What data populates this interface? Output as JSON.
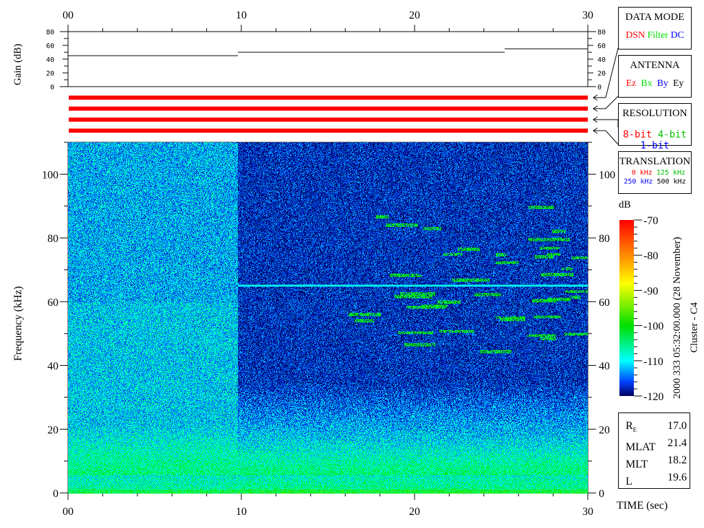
{
  "chart_data": {
    "type": "heatmap",
    "xlabel": "TIME (sec)",
    "ylabel": "Frequency (kHz)",
    "xlim": [
      0,
      30
    ],
    "ylim": [
      0,
      110
    ],
    "x_tick_labels": [
      "00",
      "10",
      "20",
      "30"
    ],
    "y_tick_labels": [
      "0",
      "20",
      "40",
      "60",
      "80",
      "100"
    ],
    "colorbar": {
      "label": "dB",
      "range": [
        -120,
        -70
      ],
      "tick_labels": [
        "-70",
        "-80",
        "-90",
        "-100",
        "-110",
        "-120"
      ],
      "colormap": "jet"
    },
    "gain": {
      "ylabel": "Gain (dB)",
      "ylim": [
        0,
        80
      ],
      "tick_labels": [
        "80",
        "60",
        "40",
        "20",
        "0"
      ],
      "segments": [
        {
          "t0": 0,
          "t1": 9.8,
          "value": 45
        },
        {
          "t0": 9.8,
          "t1": 25.2,
          "value": 50
        },
        {
          "t0": 25.2,
          "t1": 30,
          "value": 55
        }
      ]
    },
    "status_bars": {
      "data_mode": "DSN",
      "antenna": "Ez",
      "resolution": "8-bit",
      "translation": "0 kHz",
      "color": "#ff0000"
    }
  },
  "legend": {
    "data_mode": {
      "title": "DATA MODE",
      "items": [
        {
          "label": "DSN",
          "color": "#ff0000"
        },
        {
          "label": "Filter",
          "color": "#00e000"
        },
        {
          "label": "DC",
          "color": "#0000ff"
        }
      ]
    },
    "antenna": {
      "title": "ANTENNA",
      "items": [
        {
          "label": "Ez",
          "color": "#ff0000"
        },
        {
          "label": "Bx",
          "color": "#00e000"
        },
        {
          "label": "By",
          "color": "#0000ff"
        },
        {
          "label": "Ey",
          "color": "#000000"
        }
      ]
    },
    "resolution": {
      "title": "RESOLUTION",
      "items": [
        {
          "label": "8-bit",
          "color": "#ff0000"
        },
        {
          "label": "4-bit",
          "color": "#00e000"
        },
        {
          "label": "1-bit",
          "color": "#0000ff"
        }
      ]
    },
    "translation": {
      "title": "TRANSLATION",
      "items": [
        {
          "label": "0 kHz",
          "color": "#ff0000"
        },
        {
          "label": "125 kHz",
          "color": "#00e000"
        },
        {
          "label": "250 kHz",
          "color": "#0000ff"
        },
        {
          "label": "500 kHz",
          "color": "#000000"
        }
      ]
    }
  },
  "timestamp": "2000 333 05:32:00.000 (28 November)",
  "spacecraft": "Cluster - C4",
  "orbit": [
    {
      "label": "R",
      "sub": "E",
      "value": "17.0"
    },
    {
      "label": "MLAT",
      "value": "21.4"
    },
    {
      "label": "MLT",
      "value": "18.2"
    },
    {
      "label": "L",
      "value": "19.6"
    }
  ]
}
